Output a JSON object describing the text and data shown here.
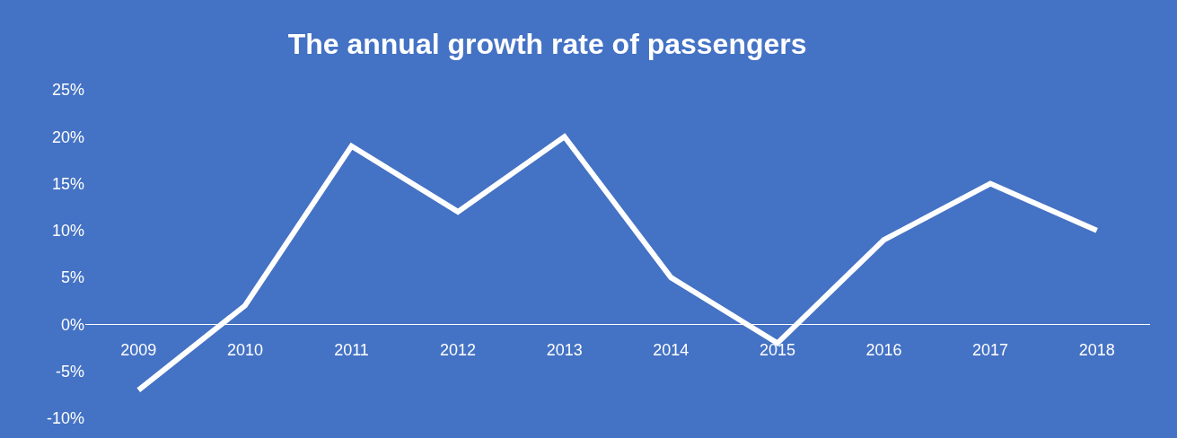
{
  "chart_data": {
    "type": "line",
    "title": "The annual growth rate of passengers",
    "categories": [
      "2009",
      "2010",
      "2011",
      "2012",
      "2013",
      "2014",
      "2015",
      "2016",
      "2017",
      "2018"
    ],
    "series": [
      {
        "color": "#ffffff",
        "values": [
          -7,
          2,
          19,
          12,
          20,
          5,
          -2,
          9,
          15,
          10
        ]
      }
    ],
    "ylim": [
      -10,
      25
    ],
    "yticks": [
      {
        "value": -10,
        "label": "-10%"
      },
      {
        "value": -5,
        "label": "-5%"
      },
      {
        "value": 0,
        "label": "0%"
      },
      {
        "value": 5,
        "label": "5%"
      },
      {
        "value": 10,
        "label": "10%"
      },
      {
        "value": 15,
        "label": "15%"
      },
      {
        "value": 20,
        "label": "20%"
      },
      {
        "value": 25,
        "label": "25%"
      }
    ],
    "grid": false,
    "marker": "none",
    "line_style": "solid"
  }
}
